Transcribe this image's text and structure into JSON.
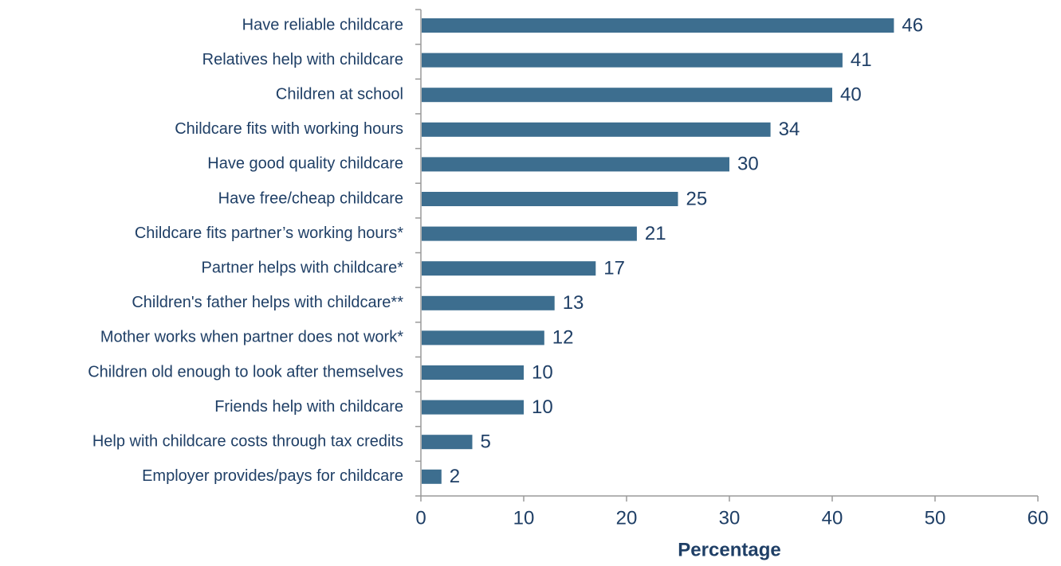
{
  "colors": {
    "bar": "#3d6e8f",
    "text": "#1f3f66",
    "axis": "#9a9a9a"
  },
  "chart_data": {
    "type": "bar",
    "orientation": "horizontal",
    "categories": [
      "Have reliable childcare",
      "Relatives help with childcare",
      "Children at school",
      "Childcare fits with working hours",
      "Have good quality childcare",
      "Have free/cheap childcare",
      "Childcare fits partner’s working hours*",
      "Partner helps with childcare*",
      "Children's father helps with childcare**",
      "Mother works when partner does not work*",
      "Children old enough to look after themselves",
      "Friends help with childcare",
      "Help with childcare costs through tax credits",
      "Employer provides/pays for childcare"
    ],
    "values": [
      46,
      41,
      40,
      34,
      30,
      25,
      21,
      17,
      13,
      12,
      10,
      10,
      5,
      2
    ],
    "value_labels": [
      "46",
      "41",
      "40",
      "34",
      "30",
      "25",
      "21",
      "17",
      "13",
      "12",
      "10",
      "10",
      "5",
      "2"
    ],
    "xlabel": "Percentage",
    "ylabel": "",
    "xlim": [
      0,
      60
    ],
    "x_ticks": [
      0,
      10,
      20,
      30,
      40,
      50,
      60
    ],
    "x_tick_labels": [
      "0",
      "10",
      "20",
      "30",
      "40",
      "50",
      "60"
    ],
    "grid": false,
    "legend": "none",
    "data_labels": true
  }
}
